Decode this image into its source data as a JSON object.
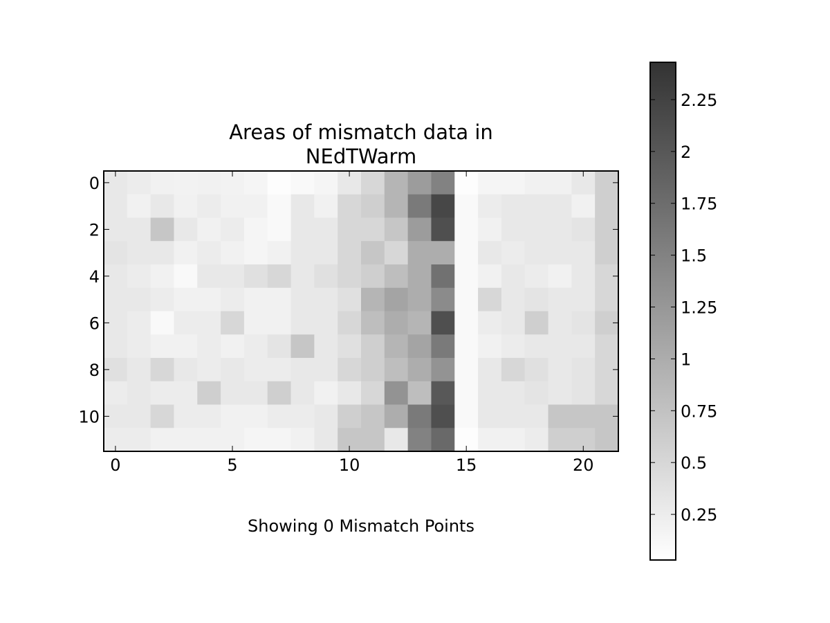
{
  "chart_data": {
    "type": "heatmap",
    "title_lines": [
      "Areas of mismatch data in",
      "NEdTWarm"
    ],
    "xlabel": "Showing 0 Mismatch Points",
    "ylabel": "",
    "n_rows": 12,
    "n_cols": 22,
    "x_ticks": [
      "0",
      "5",
      "10",
      "15",
      "20"
    ],
    "y_ticks": [
      "0",
      "2",
      "4",
      "6",
      "8",
      "10"
    ],
    "x_tick_values": [
      0,
      5,
      10,
      15,
      20
    ],
    "y_tick_values": [
      0,
      2,
      4,
      6,
      8,
      10
    ],
    "xlim": [
      -0.5,
      21.5
    ],
    "ylim": [
      11.5,
      -0.5
    ],
    "grid": false,
    "colormap": "gray_r",
    "color_range": [
      0.03,
      2.43
    ],
    "colorbar": {
      "ticks": [
        "0.25",
        "0.5",
        "0.75",
        "1",
        "1.25",
        "1.5",
        "1.75",
        "2",
        "2.25"
      ],
      "tick_values": [
        0.25,
        0.5,
        0.75,
        1.0,
        1.25,
        1.5,
        1.75,
        2.0,
        2.25
      ]
    },
    "values": [
      [
        0.3,
        0.25,
        0.2,
        0.18,
        0.2,
        0.18,
        0.15,
        0.05,
        0.1,
        0.15,
        0.3,
        0.5,
        0.9,
        1.2,
        1.5,
        0.05,
        0.15,
        0.15,
        0.2,
        0.2,
        0.3,
        0.6
      ],
      [
        0.3,
        0.2,
        0.3,
        0.2,
        0.25,
        0.2,
        0.2,
        0.1,
        0.3,
        0.2,
        0.5,
        0.6,
        0.9,
        1.6,
        2.2,
        0.1,
        0.25,
        0.3,
        0.3,
        0.3,
        0.2,
        0.6
      ],
      [
        0.3,
        0.3,
        0.7,
        0.3,
        0.2,
        0.25,
        0.15,
        0.1,
        0.3,
        0.3,
        0.5,
        0.5,
        0.7,
        1.2,
        2.1,
        0.1,
        0.2,
        0.3,
        0.3,
        0.3,
        0.35,
        0.6
      ],
      [
        0.35,
        0.3,
        0.3,
        0.2,
        0.25,
        0.2,
        0.15,
        0.2,
        0.3,
        0.3,
        0.5,
        0.7,
        0.5,
        1.0,
        1.0,
        0.1,
        0.3,
        0.25,
        0.3,
        0.3,
        0.3,
        0.6
      ],
      [
        0.3,
        0.25,
        0.2,
        0.1,
        0.3,
        0.3,
        0.4,
        0.5,
        0.3,
        0.4,
        0.5,
        0.6,
        0.8,
        1.0,
        1.7,
        0.1,
        0.2,
        0.3,
        0.25,
        0.2,
        0.3,
        0.5
      ],
      [
        0.3,
        0.3,
        0.25,
        0.2,
        0.2,
        0.25,
        0.2,
        0.2,
        0.3,
        0.3,
        0.4,
        0.9,
        1.1,
        1.0,
        1.4,
        0.1,
        0.5,
        0.3,
        0.35,
        0.3,
        0.3,
        0.5
      ],
      [
        0.3,
        0.25,
        0.1,
        0.25,
        0.25,
        0.5,
        0.2,
        0.2,
        0.3,
        0.3,
        0.5,
        0.8,
        1.0,
        0.9,
        2.1,
        0.1,
        0.25,
        0.3,
        0.6,
        0.3,
        0.35,
        0.6
      ],
      [
        0.3,
        0.25,
        0.2,
        0.2,
        0.25,
        0.2,
        0.25,
        0.35,
        0.7,
        0.3,
        0.4,
        0.6,
        0.9,
        1.1,
        1.6,
        0.1,
        0.2,
        0.25,
        0.3,
        0.3,
        0.3,
        0.5
      ],
      [
        0.4,
        0.3,
        0.5,
        0.3,
        0.25,
        0.3,
        0.25,
        0.25,
        0.3,
        0.3,
        0.5,
        0.6,
        0.8,
        1.0,
        1.3,
        0.1,
        0.3,
        0.5,
        0.4,
        0.3,
        0.35,
        0.5
      ],
      [
        0.25,
        0.3,
        0.25,
        0.25,
        0.6,
        0.3,
        0.3,
        0.6,
        0.3,
        0.2,
        0.3,
        0.5,
        1.3,
        0.8,
        2.0,
        0.1,
        0.3,
        0.3,
        0.35,
        0.3,
        0.35,
        0.5
      ],
      [
        0.3,
        0.3,
        0.5,
        0.25,
        0.25,
        0.2,
        0.2,
        0.25,
        0.25,
        0.3,
        0.6,
        0.7,
        1.0,
        1.6,
        2.1,
        0.1,
        0.3,
        0.3,
        0.3,
        0.7,
        0.7,
        0.7
      ],
      [
        0.25,
        0.25,
        0.2,
        0.2,
        0.2,
        0.2,
        0.15,
        0.15,
        0.2,
        0.3,
        0.7,
        0.7,
        0.3,
        1.5,
        1.8,
        0.05,
        0.2,
        0.2,
        0.25,
        0.6,
        0.6,
        0.7
      ]
    ]
  }
}
